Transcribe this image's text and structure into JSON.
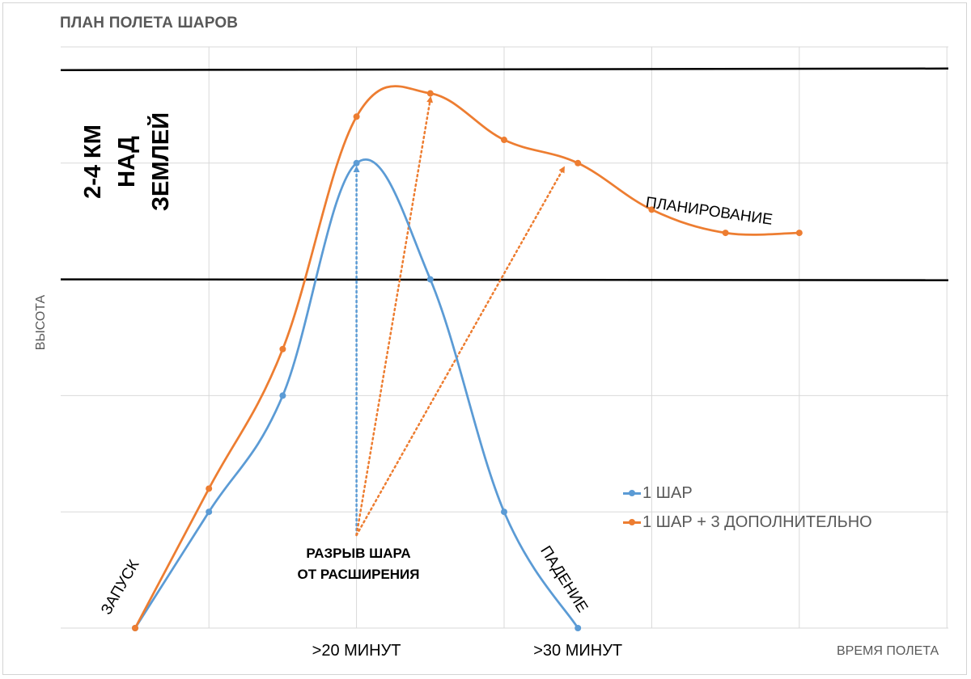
{
  "chart_data": {
    "type": "line",
    "title": "ПЛАН ПОЛЕТА ШАРОВ",
    "xlabel": "ВРЕМЯ ПОЛЕТА",
    "ylabel": "ВЫСОТА",
    "x_tick_labels": [
      {
        "x": 3,
        "label": ">20 МИНУТ"
      },
      {
        "x": 6,
        "label": ">30 МИНУТ"
      }
    ],
    "xlim": [
      0,
      11
    ],
    "ylim": [
      0,
      5
    ],
    "grid": true,
    "legend_position": "right",
    "series": [
      {
        "name": "1 ШАР",
        "color": "#5B9BD5",
        "x": [
          0,
          1,
          2,
          3,
          4,
          5,
          6
        ],
        "y": [
          0,
          1.0,
          2.0,
          4.0,
          3.0,
          1.0,
          0
        ]
      },
      {
        "name": "1 ШАР + 3 ДОПОЛНИТЕЛЬНО",
        "color": "#ED7D31",
        "x": [
          0,
          1,
          2,
          3,
          4,
          5,
          6,
          7,
          8,
          9
        ],
        "y": [
          0,
          1.2,
          2.4,
          4.4,
          4.6,
          4.2,
          4.0,
          3.6,
          3.4,
          3.4
        ]
      }
    ],
    "reference_lines": {
      "y": [
        4.8,
        3.0
      ],
      "label": "2-4 КМ НАД ЗЕМЛЕЙ",
      "color": "#000000"
    },
    "annotations": {
      "launch": "ЗАПУСК",
      "burst": "РАЗРЫВ ШАРА ОТ РАСШИРЕНИЯ",
      "burst_line1": "РАЗРЫВ ШАРА",
      "burst_line2": "ОТ РАСШИРЕНИЯ",
      "fall": "ПАДЕНИЕ",
      "glide": "ПЛАНИРОВАНИЕ",
      "altitude_band_line1": "2-4 КМ",
      "altitude_band_line2": "НАД",
      "altitude_band_line3": "ЗЕМЛЕЙ"
    },
    "arrows": [
      {
        "series": "1 ШАР",
        "from": [
          3,
          0.8
        ],
        "to": [
          3,
          3.95
        ]
      },
      {
        "series": "1 ШАР + 3 ДОПОЛНИТЕЛЬНО",
        "from": [
          3,
          0.8
        ],
        "to": [
          4,
          4.55
        ]
      },
      {
        "series": "1 ШАР + 3 ДОПОЛНИТЕЛЬНО",
        "from": [
          3,
          0.8
        ],
        "to": [
          5.8,
          3.95
        ]
      }
    ]
  }
}
